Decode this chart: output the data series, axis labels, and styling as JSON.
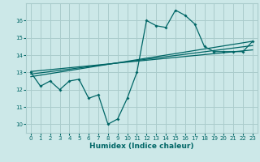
{
  "xlabel": "Humidex (Indice chaleur)",
  "bg_color": "#cce8e8",
  "grid_color": "#aacccc",
  "line_color": "#006666",
  "xlim": [
    -0.5,
    23.5
  ],
  "ylim": [
    9.5,
    17.0
  ],
  "xticks": [
    0,
    1,
    2,
    3,
    4,
    5,
    6,
    7,
    8,
    9,
    10,
    11,
    12,
    13,
    14,
    15,
    16,
    17,
    18,
    19,
    20,
    21,
    22,
    23
  ],
  "yticks": [
    10,
    11,
    12,
    13,
    14,
    15,
    16
  ],
  "line1_x": [
    0,
    1,
    2,
    3,
    4,
    5,
    6,
    7,
    8,
    9,
    10,
    11,
    12,
    13,
    14,
    15,
    16,
    17,
    18,
    19,
    20,
    21,
    22,
    23
  ],
  "line1_y": [
    13.0,
    12.2,
    12.5,
    12.0,
    12.5,
    12.6,
    11.5,
    11.7,
    10.0,
    10.3,
    11.5,
    13.0,
    16.0,
    15.7,
    15.6,
    16.6,
    16.3,
    15.8,
    14.5,
    14.2,
    14.2,
    14.2,
    14.2,
    14.8
  ],
  "line2_x": [
    0,
    23
  ],
  "line2_y": [
    12.75,
    14.8
  ],
  "line3_x": [
    0,
    23
  ],
  "line3_y": [
    12.9,
    14.55
  ],
  "line4_x": [
    0,
    23
  ],
  "line4_y": [
    13.05,
    14.3
  ]
}
